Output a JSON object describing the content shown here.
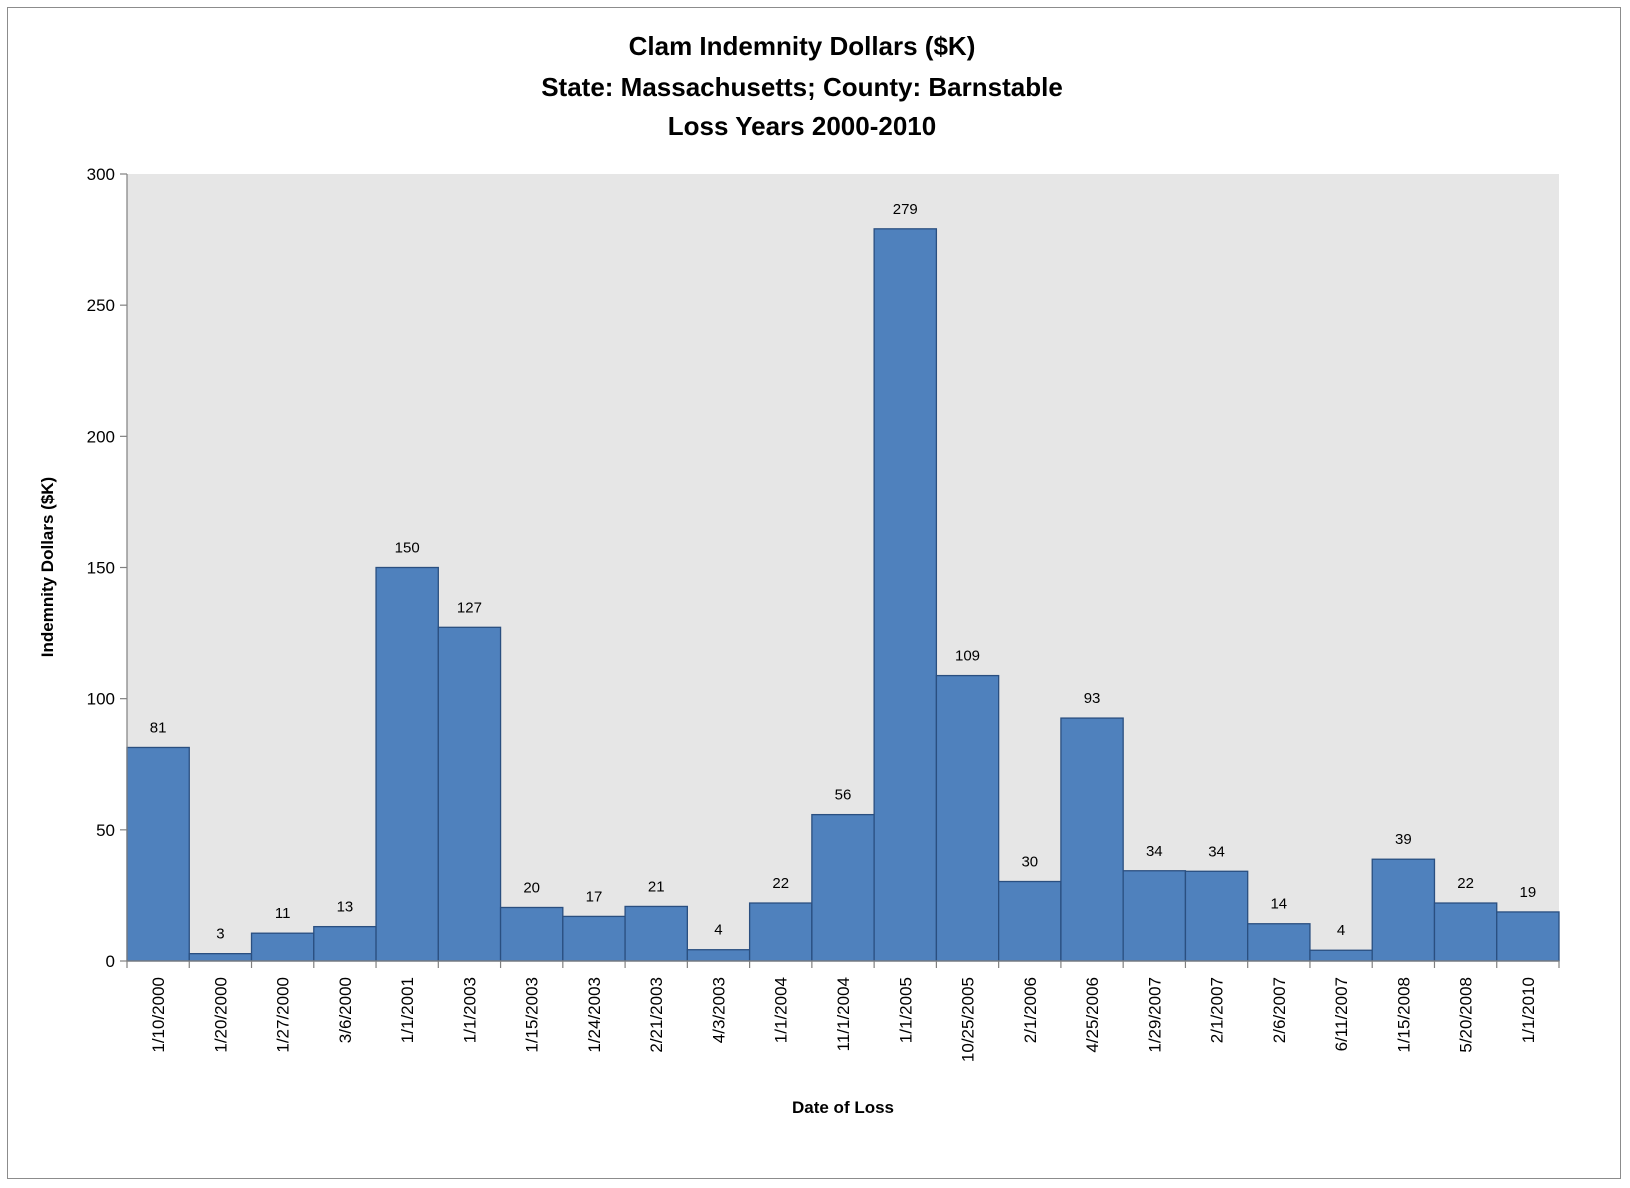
{
  "chart_data": {
    "type": "bar",
    "title_lines": [
      "Clam Indemnity Dollars ($K)",
      "State: Massachusetts; County: Barnstable",
      "Loss Years 2000-2010"
    ],
    "xlabel": "Date of Loss",
    "ylabel": "Indemnity Dollars ($K)",
    "ylim": [
      0,
      300
    ],
    "yticks": [
      0,
      50,
      100,
      150,
      200,
      250,
      300
    ],
    "grid": false,
    "legend": "none",
    "categories": [
      "1/10/2000",
      "1/20/2000",
      "1/27/2000",
      "3/6/2000",
      "1/1/2001",
      "1/1/2003",
      "1/15/2003",
      "1/24/2003",
      "2/21/2003",
      "4/3/2003",
      "1/1/2004",
      "11/1/2004",
      "1/1/2005",
      "10/25/2005",
      "2/1/2006",
      "4/25/2006",
      "1/29/2007",
      "2/1/2007",
      "2/6/2007",
      "6/11/2007",
      "1/15/2008",
      "5/20/2008",
      "1/1/2010"
    ],
    "values": [
      81.4,
      2.8,
      10.6,
      13.1,
      150,
      127.2,
      20.4,
      17,
      20.8,
      4.3,
      22.1,
      55.8,
      279.1,
      108.8,
      30.3,
      92.6,
      34.4,
      34.2,
      14.2,
      4.1,
      38.8,
      22.1,
      18.7
    ],
    "data_labels": [
      "81",
      "3",
      "11",
      "13",
      "150",
      "127",
      "20",
      "17",
      "21",
      "4",
      "22",
      "56",
      "279",
      "109",
      "30",
      "93",
      "34",
      "34",
      "14",
      "4",
      "39",
      "22",
      "19"
    ],
    "colors": {
      "bar_fill": "#4f81bd",
      "bar_stroke": "#2a4f80",
      "plot_bg": "#e6e6e6",
      "axis": "#808080"
    }
  }
}
